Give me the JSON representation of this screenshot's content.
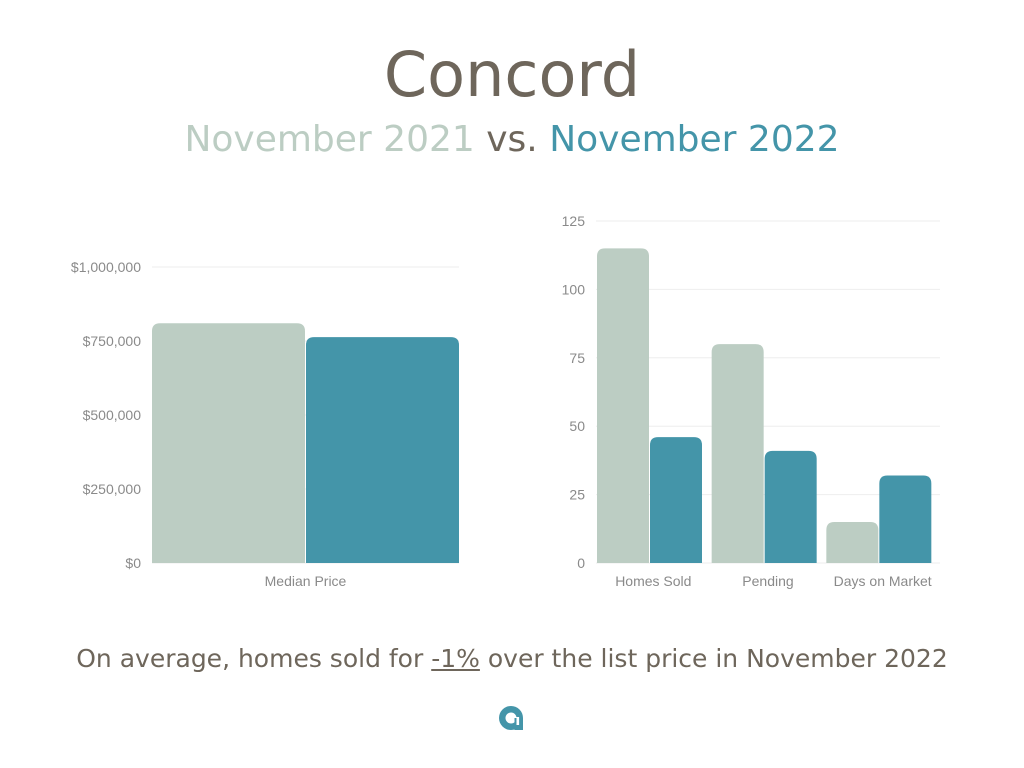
{
  "header": {
    "title": "Concord",
    "period_a": "November 2021",
    "vs": "vs.",
    "period_b": "November 2022"
  },
  "colors": {
    "period_a": "#bccdc3",
    "period_b": "#4495a9",
    "text": "#6e665b",
    "grid": "#eeeeee"
  },
  "chart_data": [
    {
      "type": "bar",
      "categories": [
        "Median Price"
      ],
      "series": [
        {
          "name": "November 2021",
          "values": [
            810000
          ]
        },
        {
          "name": "November 2022",
          "values": [
            763000
          ]
        }
      ],
      "yticks": [
        "$0",
        "$250,000",
        "$500,000",
        "$750,000",
        "$1,000,000"
      ],
      "ylim": [
        0,
        1000000
      ],
      "grid": true
    },
    {
      "type": "bar",
      "categories": [
        "Homes Sold",
        "Pending",
        "Days on Market"
      ],
      "series": [
        {
          "name": "November 2021",
          "values": [
            115,
            80,
            15
          ]
        },
        {
          "name": "November 2022",
          "values": [
            46,
            41,
            32
          ]
        }
      ],
      "yticks": [
        "0",
        "25",
        "50",
        "75",
        "100",
        "125"
      ],
      "ylim": [
        0,
        125
      ],
      "grid": true
    }
  ],
  "footer": {
    "prefix": "On average, homes sold for",
    "percent": "-1%",
    "suffix": "over the list price in November 2022"
  },
  "logo_icon": "agent-logo-icon"
}
